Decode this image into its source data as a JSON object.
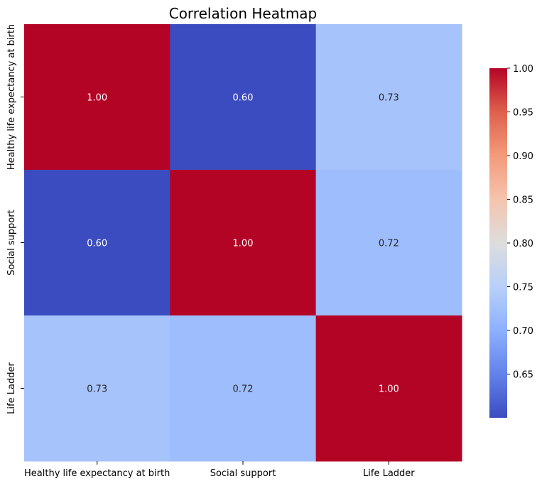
{
  "chart_data": {
    "type": "heatmap",
    "title": "Correlation Heatmap",
    "categories": [
      "Healthy life expectancy at birth",
      "Social support",
      "Life Ladder"
    ],
    "values": [
      [
        1.0,
        0.6,
        0.73
      ],
      [
        0.6,
        1.0,
        0.72
      ],
      [
        0.73,
        0.72,
        1.0
      ]
    ],
    "cell_labels": [
      [
        "1.00",
        "0.60",
        "0.73"
      ],
      [
        "0.60",
        "1.00",
        "0.72"
      ],
      [
        "0.73",
        "0.72",
        "1.00"
      ]
    ],
    "colormap": "coolwarm",
    "colorbar": {
      "min": 0.6,
      "max": 1.0,
      "ticks": [
        0.65,
        0.7,
        0.75,
        0.8,
        0.85,
        0.9,
        0.95,
        1.0
      ],
      "tick_labels": [
        "0.65",
        "0.70",
        "0.75",
        "0.80",
        "0.85",
        "0.90",
        "0.95",
        "1.00"
      ],
      "location": "right"
    }
  }
}
